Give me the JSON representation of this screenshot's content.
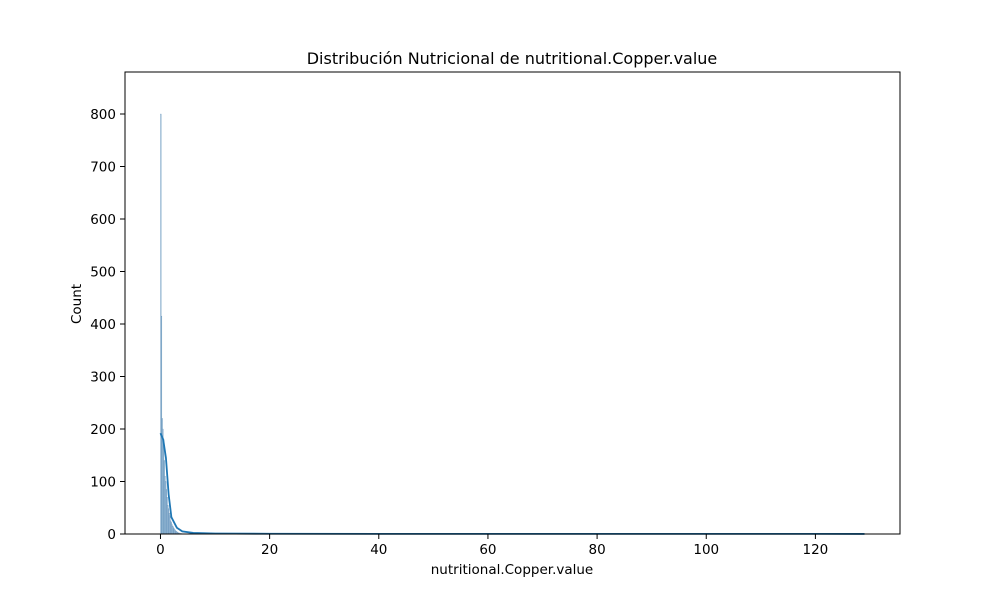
{
  "chart_data": {
    "type": "bar",
    "subtype": "histogram-with-kde",
    "title": "Distribución Nutricional de nutritional.Copper.value",
    "xlabel": "nutritional.Copper.value",
    "ylabel": "Count",
    "xlim": [
      -6.5,
      135.5
    ],
    "ylim": [
      0,
      880
    ],
    "xticks": [
      0,
      20,
      40,
      60,
      80,
      100,
      120
    ],
    "yticks": [
      0,
      100,
      200,
      300,
      400,
      500,
      600,
      700,
      800
    ],
    "grid": false,
    "legend": "none",
    "colors": {
      "bar_fill": "#a7c5dd",
      "bar_edge": "#5f8fb8",
      "kde": "#1f77b4"
    },
    "bins": {
      "bin_width": 0.129,
      "counts": [
        800,
        415,
        220,
        200,
        180,
        140,
        110,
        100,
        85,
        70,
        55,
        48,
        40,
        35,
        25,
        22,
        18,
        15,
        12,
        10,
        8,
        6,
        5,
        4,
        3,
        2,
        2,
        1,
        1,
        1
      ]
    },
    "kde": {
      "x": [
        0,
        0.5,
        1,
        1.5,
        2,
        3,
        4,
        6,
        10,
        20,
        40,
        60,
        80,
        100,
        120,
        129
      ],
      "y": [
        192,
        180,
        145,
        75,
        32,
        12,
        5,
        2,
        1,
        0.5,
        0.3,
        0.2,
        0.2,
        0.2,
        0.2,
        0.1
      ]
    }
  }
}
